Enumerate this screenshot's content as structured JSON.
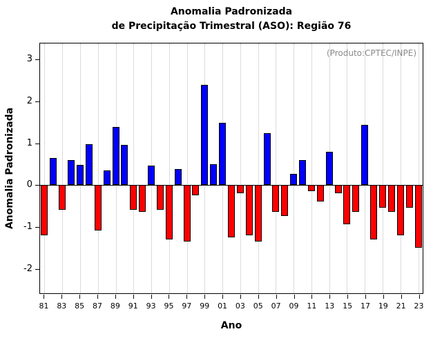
{
  "chart_data": {
    "type": "bar",
    "title_line1": "Anomalia Padronizada",
    "title_line2": "de Precipitação Trimestral (ASO): Região 76",
    "annotation": "(Produto:CPTEC/INPE)",
    "xlabel": "Ano",
    "ylabel": "Anomalia Padronizada",
    "ylim": [
      -2.6,
      3.4
    ],
    "yticks": [
      3,
      2,
      1,
      0,
      -1,
      -2
    ],
    "xtick_labels": [
      "81",
      "83",
      "85",
      "87",
      "89",
      "91",
      "93",
      "95",
      "97",
      "99",
      "01",
      "03",
      "05",
      "07",
      "09",
      "11",
      "13",
      "15",
      "17",
      "19",
      "21",
      "23"
    ],
    "grid": "dotted-vertical-at-labeled-years",
    "legend": "none",
    "positive_color": "#0000ff",
    "negative_color": "#ff0000",
    "bar_border_color": "#000000",
    "categories": [
      "81",
      "82",
      "83",
      "84",
      "85",
      "86",
      "87",
      "88",
      "89",
      "90",
      "91",
      "92",
      "93",
      "94",
      "95",
      "96",
      "97",
      "98",
      "99",
      "00",
      "01",
      "02",
      "03",
      "04",
      "05",
      "06",
      "07",
      "08",
      "09",
      "10",
      "11",
      "12",
      "13",
      "14",
      "15",
      "16",
      "17",
      "18",
      "19",
      "20",
      "21",
      "22",
      "23"
    ],
    "values": [
      -1.2,
      0.65,
      -0.6,
      0.6,
      0.48,
      0.98,
      -1.1,
      0.35,
      1.4,
      0.97,
      -0.6,
      -0.65,
      0.47,
      -0.6,
      -1.3,
      0.38,
      -1.35,
      -0.25,
      2.4,
      0.5,
      1.5,
      -1.25,
      -0.2,
      -1.2,
      -1.35,
      1.25,
      -0.65,
      -0.75,
      0.27,
      0.6,
      -0.15,
      -0.4,
      0.8,
      -0.2,
      -0.95,
      -0.65,
      1.45,
      -1.3,
      -0.55,
      -0.65,
      -1.2,
      -0.55,
      -1.5
    ]
  }
}
